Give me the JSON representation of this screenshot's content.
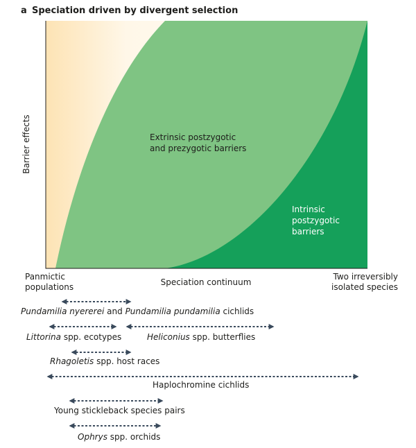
{
  "panel": "a",
  "title": "Speciation driven by divergent selection",
  "y_axis_label": "Barrier effects",
  "x_axis": {
    "left": [
      "Panmictic",
      "populations"
    ],
    "center": "Speciation continuum",
    "right": [
      "Two irreversibly",
      "isolated species"
    ]
  },
  "regions": [
    {
      "label": [
        "Extrinsic postzygotic",
        "and prezygotic barriers"
      ]
    },
    {
      "label": [
        "Intrinsic",
        "postzygotic",
        "barriers"
      ]
    }
  ],
  "examples": [
    {
      "parts": [
        {
          "text": "Pundamilia nyererei",
          "italic": true
        },
        {
          "text": " and ",
          "italic": false
        },
        {
          "text": "Pundamilia pundamilia",
          "italic": true
        },
        {
          "text": " cichlids",
          "italic": false
        }
      ]
    },
    {
      "parts": [
        {
          "text": "Littorina",
          "italic": true
        },
        {
          "text": " spp. ecotypes",
          "italic": false
        }
      ]
    },
    {
      "parts": [
        {
          "text": "Heliconius",
          "italic": true
        },
        {
          "text": " spp. butterflies",
          "italic": false
        }
      ]
    },
    {
      "parts": [
        {
          "text": "Rhagoletis",
          "italic": true
        },
        {
          "text": " spp. host races",
          "italic": false
        }
      ]
    },
    {
      "parts": [
        {
          "text": "Haplochromine cichlids",
          "italic": false
        }
      ]
    },
    {
      "parts": [
        {
          "text": "Young stickleback species pairs",
          "italic": false
        }
      ]
    },
    {
      "parts": [
        {
          "text": "Ophrys",
          "italic": true
        },
        {
          "text": " spp. orchids",
          "italic": false
        }
      ]
    }
  ]
}
